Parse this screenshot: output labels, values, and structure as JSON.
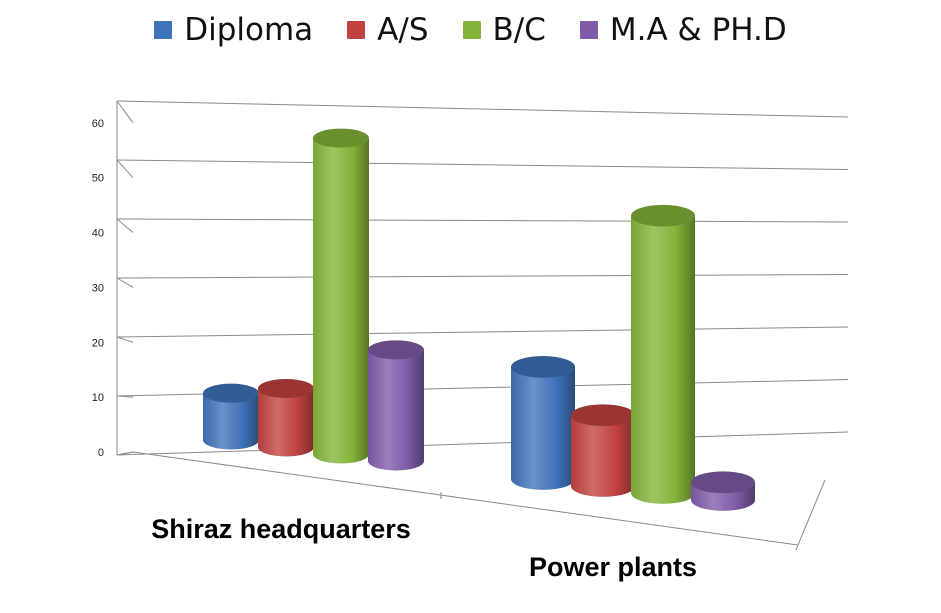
{
  "chart_data": {
    "type": "bar",
    "style": "3d-cylinder",
    "categories": [
      "Shiraz headquarters",
      "Power plants"
    ],
    "series": [
      {
        "name": "Diploma",
        "color": "#3f73b9",
        "values": [
          8,
          19
        ]
      },
      {
        "name": "A/S",
        "color": "#c0423f",
        "values": [
          10,
          12
        ]
      },
      {
        "name": "B/C",
        "color": "#84b33a",
        "values": [
          54,
          47
        ]
      },
      {
        "name": "M.A & PH.D",
        "color": "#7e5ca7",
        "values": [
          19,
          3
        ]
      }
    ],
    "y_ticks": [
      "0",
      "10",
      "20",
      "30",
      "40",
      "50",
      "60"
    ],
    "ylim": [
      0,
      60
    ],
    "grid": true,
    "legend_position": "top"
  }
}
